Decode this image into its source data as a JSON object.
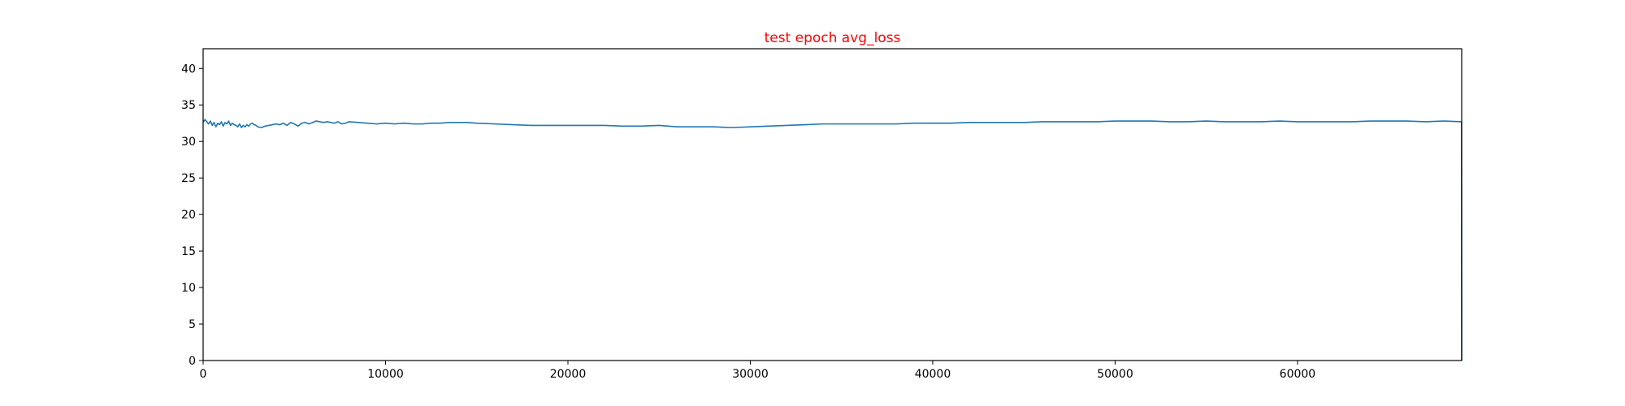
{
  "chart_data": {
    "type": "line",
    "title": "test epoch avg_loss",
    "title_color": "#ff0000",
    "xlabel": "",
    "ylabel": "",
    "xlim": [
      0,
      69000
    ],
    "ylim": [
      0,
      42.7
    ],
    "xticks": [
      0,
      10000,
      20000,
      30000,
      40000,
      50000,
      60000
    ],
    "yticks": [
      0,
      5,
      10,
      15,
      20,
      25,
      30,
      35,
      40
    ],
    "grid": false,
    "legend": "none",
    "series": [
      {
        "color": "#1f77b4",
        "x": [
          0,
          100,
          200,
          300,
          400,
          500,
          600,
          700,
          800,
          900,
          1000,
          1100,
          1200,
          1300,
          1400,
          1500,
          1600,
          1700,
          1800,
          1900,
          2000,
          2100,
          2200,
          2300,
          2400,
          2500,
          2600,
          2700,
          2800,
          2900,
          3000,
          3200,
          3400,
          3600,
          3800,
          4000,
          4200,
          4400,
          4600,
          4800,
          5000,
          5200,
          5400,
          5600,
          5800,
          6000,
          6200,
          6400,
          6600,
          6800,
          7000,
          7200,
          7400,
          7600,
          7800,
          8000,
          8500,
          9000,
          9500,
          10000,
          10500,
          11000,
          11500,
          12000,
          12500,
          13000,
          13500,
          14000,
          14500,
          15000,
          16000,
          17000,
          18000,
          19000,
          20000,
          21000,
          22000,
          23000,
          24000,
          25000,
          26000,
          27000,
          28000,
          29000,
          30000,
          31000,
          32000,
          33000,
          34000,
          35000,
          36000,
          37000,
          38000,
          39000,
          40000,
          41000,
          42000,
          43000,
          44000,
          45000,
          46000,
          47000,
          48000,
          49000,
          50000,
          51000,
          52000,
          53000,
          54000,
          55000,
          56000,
          57000,
          58000,
          59000,
          60000,
          61000,
          62000,
          63000,
          64000,
          65000,
          66000,
          67000,
          68000,
          68990,
          69000
        ],
        "y": [
          32.6,
          33.0,
          32.7,
          32.4,
          32.8,
          32.2,
          32.6,
          32.0,
          32.5,
          32.3,
          32.7,
          32.1,
          32.6,
          32.4,
          32.8,
          32.2,
          32.5,
          32.3,
          32.2,
          32.0,
          32.4,
          31.9,
          32.2,
          32.0,
          32.3,
          32.1,
          32.4,
          32.5,
          32.3,
          32.2,
          32.0,
          31.9,
          32.1,
          32.2,
          32.3,
          32.4,
          32.3,
          32.5,
          32.2,
          32.6,
          32.4,
          32.1,
          32.5,
          32.6,
          32.4,
          32.6,
          32.8,
          32.7,
          32.6,
          32.7,
          32.6,
          32.5,
          32.7,
          32.4,
          32.5,
          32.7,
          32.6,
          32.5,
          32.4,
          32.5,
          32.4,
          32.5,
          32.4,
          32.4,
          32.5,
          32.5,
          32.6,
          32.6,
          32.6,
          32.5,
          32.4,
          32.3,
          32.2,
          32.2,
          32.2,
          32.2,
          32.2,
          32.1,
          32.1,
          32.2,
          32.0,
          32.0,
          32.0,
          31.9,
          32.0,
          32.1,
          32.2,
          32.3,
          32.4,
          32.4,
          32.4,
          32.4,
          32.4,
          32.5,
          32.5,
          32.5,
          32.6,
          32.6,
          32.6,
          32.6,
          32.7,
          32.7,
          32.7,
          32.7,
          32.8,
          32.8,
          32.8,
          32.7,
          32.7,
          32.8,
          32.7,
          32.7,
          32.7,
          32.8,
          32.7,
          32.7,
          32.7,
          32.7,
          32.8,
          32.8,
          32.8,
          32.7,
          32.8,
          32.7,
          0.0
        ]
      }
    ]
  }
}
